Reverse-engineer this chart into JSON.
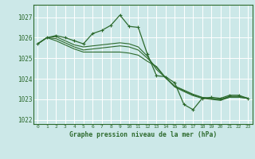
{
  "background_color": "#cce8e8",
  "grid_color": "#ffffff",
  "line_color": "#2d6a2d",
  "title": "Graphe pression niveau de la mer (hPa)",
  "xlim": [
    -0.5,
    23.5
  ],
  "ylim": [
    1021.8,
    1027.6
  ],
  "yticks": [
    1022,
    1023,
    1024,
    1025,
    1026,
    1027
  ],
  "xticks": [
    0,
    1,
    2,
    3,
    4,
    5,
    6,
    7,
    8,
    9,
    10,
    11,
    12,
    13,
    14,
    15,
    16,
    17,
    18,
    19,
    20,
    21,
    22,
    23
  ],
  "series": [
    {
      "x": [
        0,
        1,
        2,
        3,
        4,
        5,
        6,
        7,
        8,
        9,
        10,
        11,
        12,
        13,
        14,
        15,
        16,
        17,
        18,
        19,
        20,
        21,
        22,
        23
      ],
      "y": [
        1025.7,
        1026.0,
        1026.1,
        1026.0,
        1025.85,
        1025.7,
        1026.2,
        1026.35,
        1026.6,
        1027.1,
        1026.55,
        1026.5,
        1025.2,
        1024.15,
        1024.1,
        1023.8,
        1022.75,
        1022.5,
        1023.05,
        1023.1,
        1023.05,
        1023.2,
        1023.2,
        1023.05
      ],
      "marker": true
    },
    {
      "x": [
        0,
        1,
        2,
        3,
        4,
        5,
        6,
        7,
        8,
        9,
        10,
        11,
        12,
        13,
        14,
        15,
        16,
        17,
        18,
        19,
        20,
        21,
        22,
        23
      ],
      "y": [
        1025.7,
        1026.0,
        1026.05,
        1025.85,
        1025.65,
        1025.55,
        1025.6,
        1025.65,
        1025.7,
        1025.75,
        1025.7,
        1025.55,
        1025.1,
        1024.45,
        1024.05,
        1023.65,
        1023.45,
        1023.25,
        1023.1,
        1023.05,
        1023.0,
        1023.15,
        1023.15,
        1023.05
      ],
      "marker": false
    },
    {
      "x": [
        0,
        1,
        2,
        3,
        4,
        5,
        6,
        7,
        8,
        9,
        10,
        11,
        12,
        13,
        14,
        15,
        16,
        17,
        18,
        19,
        20,
        21,
        22,
        23
      ],
      "y": [
        1025.7,
        1026.0,
        1025.95,
        1025.75,
        1025.55,
        1025.4,
        1025.45,
        1025.5,
        1025.55,
        1025.6,
        1025.55,
        1025.4,
        1025.0,
        1024.55,
        1024.05,
        1023.62,
        1023.42,
        1023.22,
        1023.08,
        1023.03,
        1022.98,
        1023.12,
        1023.12,
        1023.05
      ],
      "marker": false
    },
    {
      "x": [
        0,
        1,
        2,
        3,
        4,
        5,
        6,
        7,
        8,
        9,
        10,
        11,
        12,
        13,
        14,
        15,
        16,
        17,
        18,
        19,
        20,
        21,
        22,
        23
      ],
      "y": [
        1025.7,
        1026.0,
        1025.85,
        1025.65,
        1025.45,
        1025.3,
        1025.3,
        1025.3,
        1025.3,
        1025.3,
        1025.25,
        1025.15,
        1024.85,
        1024.6,
        1024.05,
        1023.6,
        1023.38,
        1023.18,
        1023.05,
        1023.0,
        1022.95,
        1023.1,
        1023.1,
        1023.05
      ],
      "marker": false
    }
  ]
}
